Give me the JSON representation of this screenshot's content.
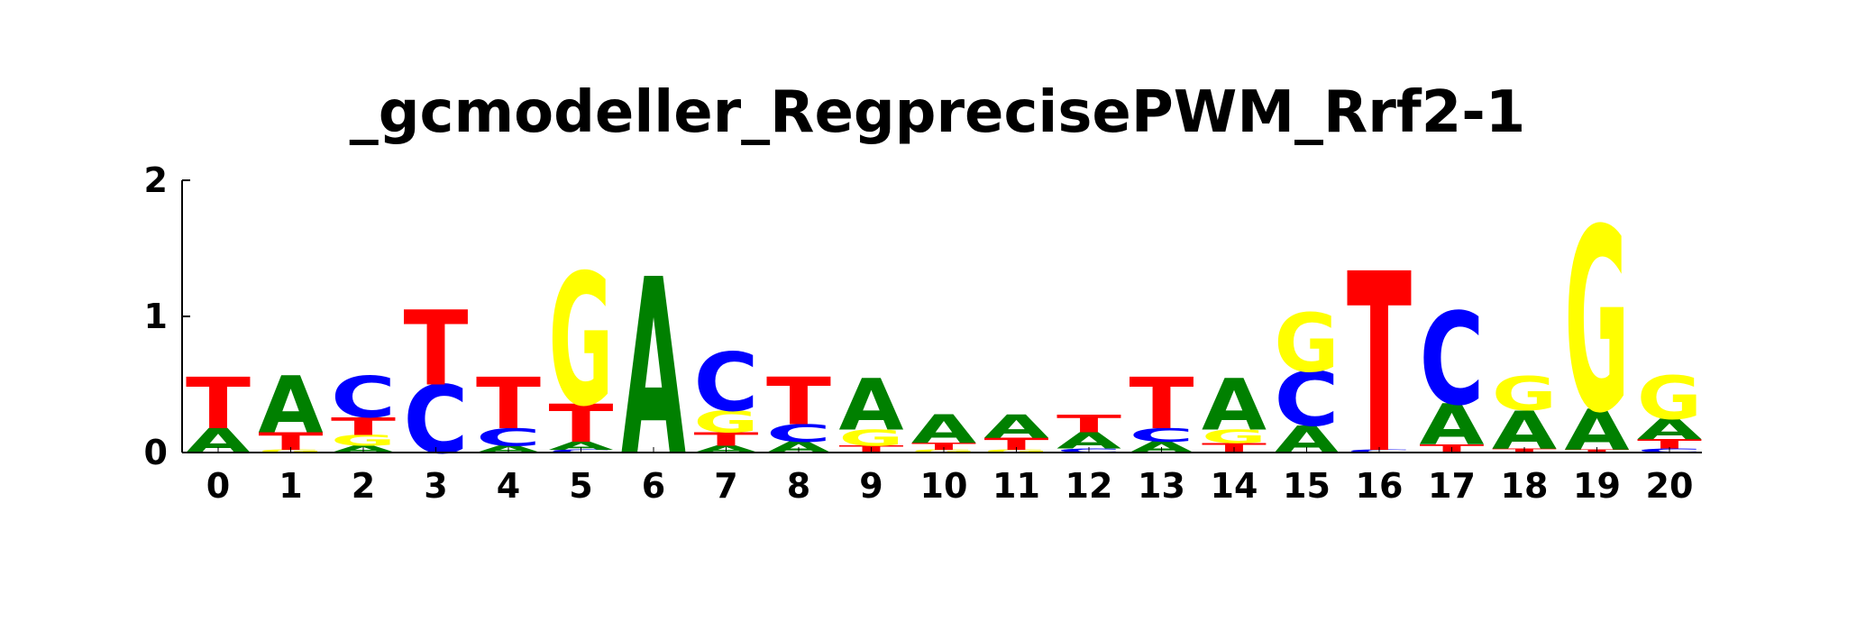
{
  "chart_data": {
    "type": "sequence-logo",
    "title": "_gcmodeller_RegprecisePWM_Rrf2-1",
    "y_ticks": [
      "0",
      "1",
      "2"
    ],
    "ylim": [
      0,
      2
    ],
    "colors": {
      "A": "#008000",
      "C": "#0000ff",
      "G": "#ffff00",
      "T": "#ff0000"
    },
    "positions": [
      {
        "label": "0",
        "stack": [
          [
            "A",
            0.18
          ],
          [
            "T",
            0.38
          ]
        ]
      },
      {
        "label": "1",
        "stack": [
          [
            "G",
            0.02
          ],
          [
            "T",
            0.13
          ],
          [
            "A",
            0.42
          ]
        ]
      },
      {
        "label": "2",
        "stack": [
          [
            "A",
            0.05
          ],
          [
            "G",
            0.08
          ],
          [
            "T",
            0.13
          ],
          [
            "C",
            0.3
          ]
        ]
      },
      {
        "label": "3",
        "stack": [
          [
            "C",
            0.5
          ],
          [
            "T",
            0.55
          ]
        ]
      },
      {
        "label": "4",
        "stack": [
          [
            "A",
            0.05
          ],
          [
            "C",
            0.13
          ],
          [
            "T",
            0.38
          ]
        ]
      },
      {
        "label": "5",
        "stack": [
          [
            "C",
            0.02
          ],
          [
            "A",
            0.06
          ],
          [
            "T",
            0.28
          ],
          [
            "G",
            0.97
          ]
        ]
      },
      {
        "label": "6",
        "stack": [
          [
            "A",
            1.3
          ]
        ]
      },
      {
        "label": "7",
        "stack": [
          [
            "A",
            0.05
          ],
          [
            "T",
            0.1
          ],
          [
            "G",
            0.16
          ],
          [
            "C",
            0.43
          ]
        ]
      },
      {
        "label": "8",
        "stack": [
          [
            "A",
            0.08
          ],
          [
            "C",
            0.13
          ],
          [
            "T",
            0.35
          ]
        ]
      },
      {
        "label": "9",
        "stack": [
          [
            "T",
            0.05
          ],
          [
            "G",
            0.12
          ],
          [
            "A",
            0.38
          ]
        ]
      },
      {
        "label": "10",
        "stack": [
          [
            "G",
            0.02
          ],
          [
            "T",
            0.05
          ],
          [
            "A",
            0.21
          ]
        ]
      },
      {
        "label": "11",
        "stack": [
          [
            "G",
            0.02
          ],
          [
            "T",
            0.09
          ],
          [
            "A",
            0.17
          ]
        ]
      },
      {
        "label": "12",
        "stack": [
          [
            "C",
            0.03
          ],
          [
            "A",
            0.12
          ],
          [
            "T",
            0.13
          ]
        ]
      },
      {
        "label": "13",
        "stack": [
          [
            "A",
            0.08
          ],
          [
            "C",
            0.1
          ],
          [
            "T",
            0.38
          ]
        ]
      },
      {
        "label": "14",
        "stack": [
          [
            "T",
            0.07
          ],
          [
            "G",
            0.1
          ],
          [
            "A",
            0.38
          ]
        ]
      },
      {
        "label": "15",
        "stack": [
          [
            "A",
            0.2
          ],
          [
            "C",
            0.4
          ],
          [
            "G",
            0.43
          ]
        ]
      },
      {
        "label": "16",
        "stack": [
          [
            "C",
            0.02
          ],
          [
            "T",
            1.32
          ]
        ]
      },
      {
        "label": "17",
        "stack": [
          [
            "T",
            0.06
          ],
          [
            "A",
            0.3
          ],
          [
            "C",
            0.68
          ]
        ]
      },
      {
        "label": "18",
        "stack": [
          [
            "T",
            0.03
          ],
          [
            "A",
            0.28
          ],
          [
            "G",
            0.25
          ]
        ]
      },
      {
        "label": "19",
        "stack": [
          [
            "T",
            0.02
          ],
          [
            "A",
            0.3
          ],
          [
            "G",
            1.35
          ]
        ]
      },
      {
        "label": "20",
        "stack": [
          [
            "C",
            0.03
          ],
          [
            "T",
            0.07
          ],
          [
            "A",
            0.15
          ],
          [
            "G",
            0.32
          ]
        ]
      }
    ]
  }
}
